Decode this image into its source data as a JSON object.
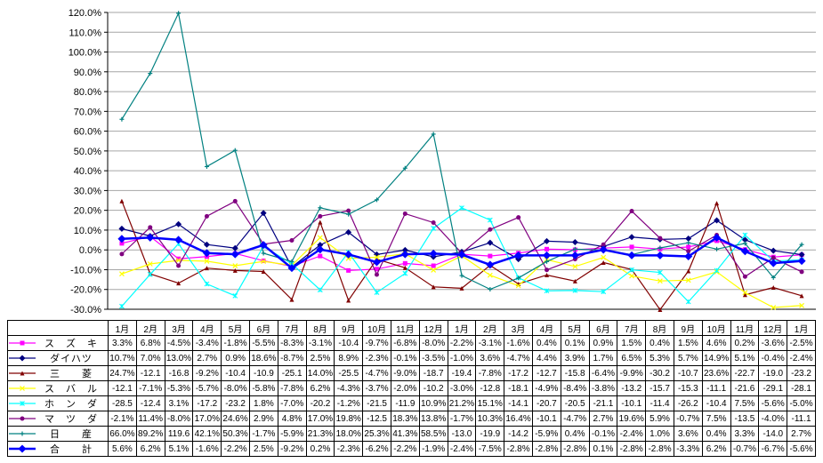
{
  "chart_data": {
    "type": "line",
    "title": "",
    "xlabel": "",
    "ylabel": "",
    "ylim": [
      -30,
      120
    ],
    "grid_step": 10,
    "grid": true,
    "legend_position": "table-left-column",
    "y_ticks": [
      "120.0%",
      "110.0%",
      "100.0%",
      "90.0%",
      "80.0%",
      "70.0%",
      "60.0%",
      "50.0%",
      "40.0%",
      "30.0%",
      "20.0%",
      "10.0%",
      "0.0%",
      "-10.0%",
      "-20.0%",
      "-30.0%"
    ],
    "categories": [
      "1月",
      "2月",
      "3月",
      "4月",
      "5月",
      "6月",
      "7月",
      "8月",
      "9月",
      "10月",
      "11月",
      "12月",
      "1月",
      "2月",
      "3月",
      "4月",
      "5月",
      "6月",
      "7月",
      "8月",
      "9月",
      "10月",
      "11月",
      "12月",
      "1月"
    ],
    "series": [
      {
        "id": "suzuki",
        "name": "スズキ",
        "label": "ス　ズ　キ",
        "color": "#FF00FF",
        "marker": "square",
        "line_width": 1.2,
        "values": [
          3.3,
          6.8,
          -4.5,
          -3.4,
          -1.8,
          -5.5,
          -8.3,
          -3.1,
          -10.4,
          -9.7,
          -6.8,
          -8.0,
          -2.2,
          -3.1,
          -1.6,
          0.4,
          0.1,
          0.9,
          1.5,
          0.4,
          1.5,
          4.6,
          0.2,
          -3.6,
          -2.5
        ],
        "display": [
          "3.3%",
          "6.8%",
          "-4.5%",
          "-3.4%",
          "-1.8%",
          "-5.5%",
          "-8.3%",
          "-3.1%",
          "-10.4",
          "-9.7%",
          "-6.8%",
          "-8.0%",
          "-2.2%",
          "-3.1%",
          "-1.6%",
          "0.4%",
          "0.1%",
          "0.9%",
          "1.5%",
          "0.4%",
          "1.5%",
          "4.6%",
          "0.2%",
          "-3.6%",
          "-2.5%"
        ]
      },
      {
        "id": "daihatsu",
        "name": "ダイハツ",
        "label": "ダイハツ",
        "color": "#000080",
        "marker": "diamond",
        "line_width": 1.2,
        "values": [
          10.7,
          7.0,
          13.0,
          2.7,
          0.9,
          18.6,
          -8.7,
          2.5,
          8.9,
          -2.3,
          -0.1,
          -3.5,
          -1.0,
          3.6,
          -4.7,
          4.4,
          3.9,
          1.7,
          6.5,
          5.3,
          5.7,
          14.9,
          5.1,
          -0.4,
          -2.4
        ],
        "display": [
          "10.7%",
          "7.0%",
          "13.0%",
          "2.7%",
          "0.9%",
          "18.6%",
          "-8.7%",
          "2.5%",
          "8.9%",
          "-2.3%",
          "-0.1%",
          "-3.5%",
          "-1.0%",
          "3.6%",
          "-4.7%",
          "4.4%",
          "3.9%",
          "1.7%",
          "6.5%",
          "5.3%",
          "5.7%",
          "14.9%",
          "5.1%",
          "-0.4%",
          "-2.4%"
        ]
      },
      {
        "id": "mitsubishi",
        "name": "三菱",
        "label": "三　　菱",
        "color": "#800000",
        "marker": "triangle",
        "line_width": 1.2,
        "values": [
          24.7,
          -12.1,
          -16.8,
          -9.2,
          -10.4,
          -10.9,
          -25.1,
          14.0,
          -25.5,
          -4.7,
          -9.0,
          -18.7,
          -19.4,
          -7.8,
          -17.2,
          -12.7,
          -15.8,
          -6.4,
          -9.9,
          -30.2,
          -10.7,
          23.6,
          -22.7,
          -19.0,
          -23.2
        ],
        "display": [
          "24.7%",
          "-12.1",
          "-16.8",
          "-9.2%",
          "-10.4",
          "-10.9",
          "-25.1",
          "14.0%",
          "-25.5",
          "-4.7%",
          "-9.0%",
          "-18.7",
          "-19.4",
          "-7.8%",
          "-17.2",
          "-12.7",
          "-15.8",
          "-6.4%",
          "-9.9%",
          "-30.2",
          "-10.7",
          "23.6%",
          "-22.7",
          "-19.0",
          "-23.2"
        ]
      },
      {
        "id": "subaru",
        "name": "スバル",
        "label": "ス　バ　ル",
        "color": "#FFFF00",
        "marker": "x",
        "line_width": 1.2,
        "values": [
          -12.1,
          -7.1,
          -5.3,
          -5.7,
          -8.0,
          -5.8,
          -7.8,
          6.2,
          -4.3,
          -3.7,
          -2.0,
          -10.2,
          -3.0,
          -12.8,
          -18.1,
          -4.9,
          -8.4,
          -3.8,
          -13.2,
          -15.7,
          -15.3,
          -11.1,
          -21.6,
          -29.1,
          -28.1
        ],
        "display": [
          "-12.1",
          "-7.1%",
          "-5.3%",
          "-5.7%",
          "-8.0%",
          "-5.8%",
          "-7.8%",
          "6.2%",
          "-4.3%",
          "-3.7%",
          "-2.0%",
          "-10.2",
          "-3.0%",
          "-12.8",
          "-18.1",
          "-4.9%",
          "-8.4%",
          "-3.8%",
          "-13.2",
          "-15.7",
          "-15.3",
          "-11.1",
          "-21.6",
          "-29.1",
          "-28.1"
        ]
      },
      {
        "id": "honda",
        "name": "ホンダ",
        "label": "ホ　ン　ダ",
        "color": "#00FFFF",
        "marker": "asterisk",
        "line_width": 1.2,
        "values": [
          -28.5,
          -12.4,
          3.1,
          -17.2,
          -23.2,
          1.8,
          -7.0,
          -20.2,
          -1.2,
          -21.5,
          -11.9,
          10.9,
          21.2,
          15.1,
          -14.1,
          -20.7,
          -20.5,
          -21.1,
          -10.1,
          -11.4,
          -26.2,
          -10.4,
          7.5,
          -5.6,
          -5.0
        ],
        "display": [
          "-28.5",
          "-12.4",
          "3.1%",
          "-17.2",
          "-23.2",
          "1.8%",
          "-7.0%",
          "-20.2",
          "-1.2%",
          "-21.5",
          "-11.9",
          "10.9%",
          "21.2%",
          "15.1%",
          "-14.1",
          "-20.7",
          "-20.5",
          "-21.1",
          "-10.1",
          "-11.4",
          "-26.2",
          "-10.4",
          "7.5%",
          "-5.6%",
          "-5.0%"
        ]
      },
      {
        "id": "mazda",
        "name": "マツダ",
        "label": "マ　ツ　ダ",
        "color": "#800080",
        "marker": "circle",
        "line_width": 1.2,
        "values": [
          -2.1,
          11.4,
          -8.0,
          17.0,
          24.6,
          2.9,
          4.8,
          17.0,
          19.8,
          -12.5,
          18.3,
          13.8,
          -1.7,
          10.3,
          16.4,
          -10.1,
          -4.7,
          2.7,
          19.6,
          5.9,
          -0.7,
          7.5,
          -13.5,
          -4.0,
          -11.1
        ],
        "display": [
          "-2.1%",
          "11.4%",
          "-8.0%",
          "17.0%",
          "24.6%",
          "2.9%",
          "4.8%",
          "17.0%",
          "19.8%",
          "-12.5",
          "18.3%",
          "13.8%",
          "-1.7%",
          "10.3%",
          "16.4%",
          "-10.1",
          "-4.7%",
          "2.7%",
          "19.6%",
          "5.9%",
          "-0.7%",
          "7.5%",
          "-13.5",
          "-4.0%",
          "-11.1"
        ]
      },
      {
        "id": "nissan",
        "name": "日産",
        "label": "日　　産",
        "color": "#008080",
        "marker": "plus",
        "line_width": 1.2,
        "values": [
          66.0,
          89.2,
          119.6,
          42.1,
          50.3,
          -1.7,
          -5.9,
          21.3,
          18.0,
          25.3,
          41.3,
          58.5,
          -13.0,
          -19.9,
          -14.2,
          -5.9,
          0.4,
          -0.1,
          -2.4,
          1.0,
          3.6,
          0.4,
          3.3,
          -14.0,
          2.7
        ],
        "display": [
          "66.0%",
          "89.2%",
          "119.6",
          "42.1%",
          "50.3%",
          "-1.7%",
          "-5.9%",
          "21.3%",
          "18.0%",
          "25.3%",
          "41.3%",
          "58.5%",
          "-13.0",
          "-19.9",
          "-14.2",
          "-5.9%",
          "0.4%",
          "-0.1%",
          "-2.4%",
          "1.0%",
          "3.6%",
          "0.4%",
          "3.3%",
          "-14.0",
          "2.7%"
        ]
      },
      {
        "id": "total",
        "name": "合計",
        "label": "合　　計",
        "color": "#0000FF",
        "marker": "diamond",
        "line_width": 2.5,
        "values": [
          5.6,
          6.2,
          5.1,
          -1.6,
          -2.2,
          2.5,
          -9.2,
          0.2,
          -2.3,
          -6.2,
          -2.2,
          -1.9,
          -2.4,
          -7.5,
          -2.8,
          -2.8,
          -2.8,
          0.1,
          -2.8,
          -2.8,
          -3.3,
          6.2,
          -0.7,
          -6.7,
          -5.6
        ],
        "display": [
          "5.6%",
          "6.2%",
          "5.1%",
          "-1.6%",
          "-2.2%",
          "2.5%",
          "-9.2%",
          "0.2%",
          "-2.3%",
          "-6.2%",
          "-2.2%",
          "-1.9%",
          "-2.4%",
          "-7.5%",
          "-2.8%",
          "-2.8%",
          "-2.8%",
          "0.1%",
          "-2.8%",
          "-2.8%",
          "-3.3%",
          "6.2%",
          "-0.7%",
          "-6.7%",
          "-5.6%"
        ]
      }
    ],
    "colors": {
      "gridline": "#A6A6A6",
      "axis": "#000000",
      "background": "#FFFFFF"
    }
  }
}
